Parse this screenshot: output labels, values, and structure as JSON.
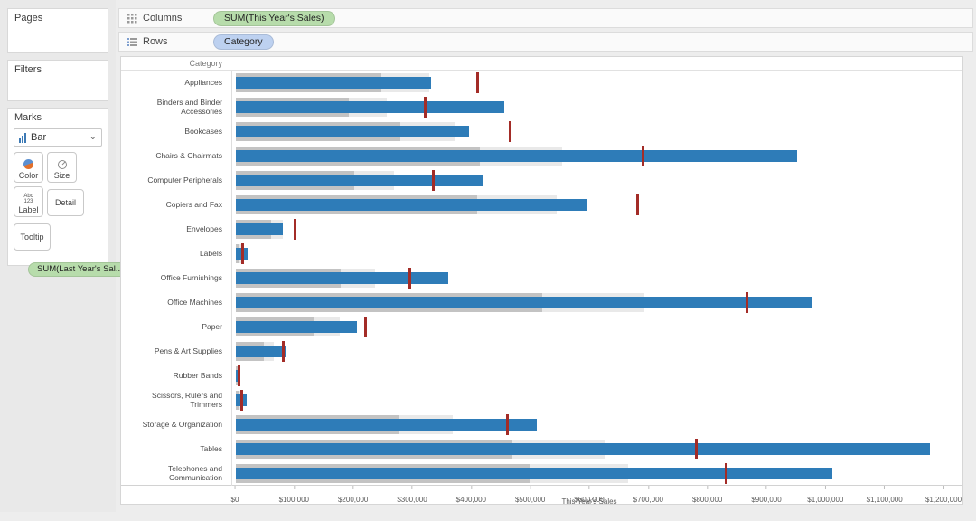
{
  "sidebar": {
    "pages_label": "Pages",
    "filters_label": "Filters",
    "marks_label": "Marks",
    "mark_type": "Bar",
    "color_label": "Color",
    "size_label": "Size",
    "label_label": "Label",
    "detail_label": "Detail",
    "tooltip_label": "Tooltip",
    "marks_pill": "SUM(Last Year's Sal.."
  },
  "shelves": {
    "columns_label": "Columns",
    "columns_pill": "SUM(This Year's Sales)",
    "rows_label": "Rows",
    "rows_pill": "Category"
  },
  "chart_data": {
    "type": "bar",
    "subtype": "bullet",
    "row_header": "Category",
    "xlabel": "This Year's Sales",
    "xlim": [
      0,
      1200000
    ],
    "x_ticks": [
      "$0",
      "$100,000",
      "$200,000",
      "$300,000",
      "$400,000",
      "$500,000",
      "$600,000",
      "$700,000",
      "$800,000",
      "$900,000",
      "$1,000,000",
      "$1,100,000",
      "$1,200,000"
    ],
    "grid": false,
    "categories": [
      "Appliances",
      "Binders and Binder Accessories",
      "Bookcases",
      "Chairs & Chairmats",
      "Computer Peripherals",
      "Copiers and Fax",
      "Envelopes",
      "Labels",
      "Office Furnishings",
      "Office Machines",
      "Paper",
      "Pens & Art Supplies",
      "Rubber Bands",
      "Scissors, Rulers and Trimmers",
      "Storage & Organization",
      "Tables",
      "Telephones and Communication"
    ],
    "series": [
      {
        "name": "SUM(This Year's Sales)",
        "role": "bar",
        "values": [
          330000,
          455000,
          395000,
          950000,
          420000,
          595000,
          80000,
          20000,
          360000,
          975000,
          205000,
          85000,
          4000,
          18000,
          510000,
          1175000,
          1010000
        ]
      },
      {
        "name": "SUM(Last Year's Sales)",
        "role": "reference_line",
        "values": [
          410000,
          320000,
          465000,
          690000,
          335000,
          680000,
          100000,
          11000,
          295000,
          865000,
          220000,
          80000,
          5000,
          10000,
          460000,
          780000,
          830000
        ]
      }
    ],
    "reference_bands": {
      "based_on": "SUM(Last Year's Sales)",
      "levels": [
        0.6,
        0.8
      ]
    }
  },
  "colors": {
    "bar_blue": "#2e7cb8",
    "reference_red": "#a32c27",
    "band_60": "#c3c3c3",
    "band_80": "#e9e9e9",
    "pill_green": "#b7dcab",
    "pill_blue": "#bdd1f0"
  }
}
